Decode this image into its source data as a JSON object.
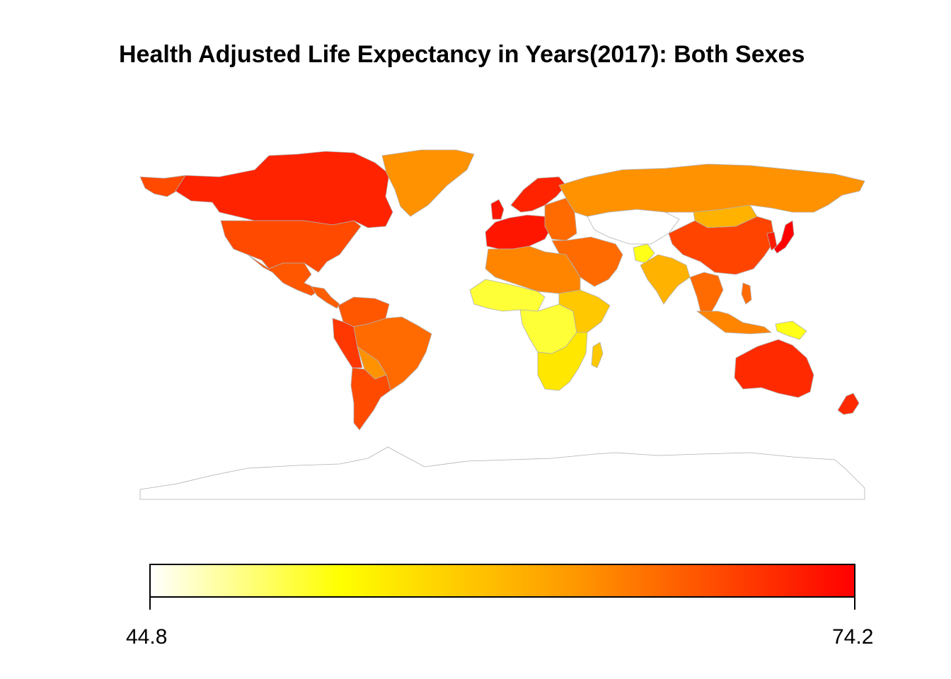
{
  "title": "Health Adjusted Life Expectancy in Years(2017): Both Sexes",
  "legend": {
    "min_label": "44.8",
    "max_label": "74.2",
    "min_value": 44.8,
    "max_value": 74.2,
    "palette": [
      "#ffffff",
      "#ffff00",
      "#ff8c00",
      "#ff0000"
    ],
    "placement": "bottom"
  },
  "map": {
    "projection": "equirectangular-like world map",
    "border_color": "#b0b0b0",
    "regions": [
      {
        "name": "Greenland",
        "hale": 63.0
      },
      {
        "name": "Canada",
        "hale": 71.5
      },
      {
        "name": "Alaska (USA)",
        "hale": 68.5
      },
      {
        "name": "United States",
        "hale": 68.5
      },
      {
        "name": "Mexico",
        "hale": 67.5
      },
      {
        "name": "Central America",
        "hale": 67.0
      },
      {
        "name": "Colombia/Venezuela",
        "hale": 67.5
      },
      {
        "name": "Peru/Ecuador",
        "hale": 70.0
      },
      {
        "name": "Brazil",
        "hale": 66.0
      },
      {
        "name": "Bolivia",
        "hale": 63.0
      },
      {
        "name": "Argentina/Chile",
        "hale": 68.5
      },
      {
        "name": "Scandinavia",
        "hale": 71.5
      },
      {
        "name": "Western Europe",
        "hale": 72.5
      },
      {
        "name": "Eastern Europe",
        "hale": 66.0
      },
      {
        "name": "Russia",
        "hale": 63.0
      },
      {
        "name": "Kazakhstan/Central Asia",
        "hale": 63.0
      },
      {
        "name": "Mongolia",
        "hale": 60.0
      },
      {
        "name": "China",
        "hale": 69.0
      },
      {
        "name": "Japan",
        "hale": 74.2
      },
      {
        "name": "Korea",
        "hale": 72.0
      },
      {
        "name": "Middle East",
        "hale": 66.0
      },
      {
        "name": "Afghanistan",
        "hale": 52.0
      },
      {
        "name": "India",
        "hale": 60.0
      },
      {
        "name": "Southeast Asia",
        "hale": 66.0
      },
      {
        "name": "Indonesia",
        "hale": 64.0
      },
      {
        "name": "Papua New Guinea",
        "hale": 52.0
      },
      {
        "name": "Australia",
        "hale": 71.0
      },
      {
        "name": "New Zealand",
        "hale": 71.0
      },
      {
        "name": "North Africa",
        "hale": 64.0
      },
      {
        "name": "West Africa",
        "hale": 51.0
      },
      {
        "name": "Central Africa",
        "hale": 51.0
      },
      {
        "name": "East Africa",
        "hale": 58.0
      },
      {
        "name": "Southern Africa",
        "hale": 55.0
      },
      {
        "name": "Madagascar",
        "hale": 58.0
      },
      {
        "name": "Antarctica",
        "hale": null
      }
    ]
  }
}
